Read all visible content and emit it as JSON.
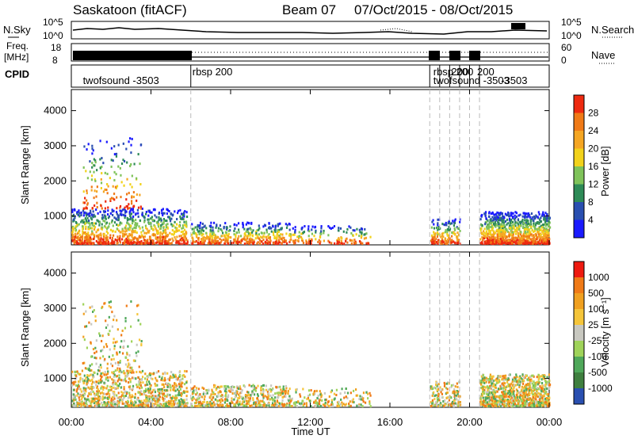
{
  "header": {
    "radar": "Saskatoon (fitACF)",
    "beam": "Beam 07",
    "date_range": "07/Oct/2015 - 08/Oct/2015"
  },
  "noise_panel": {
    "left_label": "N.Sky",
    "right_label": "N.Search",
    "left_ticks": [
      "10^5",
      "10^0"
    ],
    "right_ticks": [
      "10^5",
      "10^0"
    ]
  },
  "freq_panel": {
    "left_label_line1": "Freq.",
    "left_label_line2": "[MHz]",
    "right_label": "Nave",
    "left_ticks": [
      "18",
      "8"
    ],
    "right_ticks": [
      "60",
      "0"
    ]
  },
  "cpid_panel": {
    "label": "CPID",
    "entries": [
      {
        "text": "twofsound -3503",
        "x": 0.5,
        "row": 2
      },
      {
        "text": "rbsp 200",
        "x": 6.0,
        "row": 1
      },
      {
        "text": "rbsp 200",
        "x": 18.1,
        "row": 1
      },
      {
        "text": "twofsound -3503",
        "x": 18.1,
        "row": 2
      },
      {
        "text": "200",
        "x": 19.0,
        "row": 1
      },
      {
        "text": "200",
        "x": 20.3,
        "row": 1
      },
      {
        "text": "-3503",
        "x": 21.5,
        "row": 2
      }
    ],
    "boundaries": [
      6.0,
      18.0,
      18.5,
      19.0,
      19.5,
      20.0,
      20.5
    ]
  },
  "x_axis": {
    "label": "Time UT",
    "ticks": [
      "00:00",
      "04:00",
      "08:00",
      "12:00",
      "16:00",
      "20:00",
      "00:00"
    ]
  },
  "power_panel": {
    "ylabel": "Slant Range [km]",
    "colorbar_label": "Power [dB]",
    "colorbar_ticks": [
      "28",
      "24",
      "20",
      "16",
      "12",
      "8",
      "4"
    ],
    "colors": [
      "#1a1aff",
      "#2a4fb0",
      "#2e8b57",
      "#7fc35a",
      "#f2d21b",
      "#f5a623",
      "#f07a17",
      "#ee2a10"
    ]
  },
  "velocity_panel": {
    "ylabel": "Slant Range [km]",
    "colorbar_label": "Velocity [m s⁻¹]",
    "colorbar_ticks": [
      "1000",
      "500",
      "100",
      "25",
      "-25",
      "-100",
      "-500",
      "-1000"
    ],
    "colors": [
      "#2a4fb0",
      "#3f7f3f",
      "#4fa85a",
      "#9fd35a",
      "#c8c8c0",
      "#f5c53a",
      "#f0a020",
      "#f07a17",
      "#ee1a10"
    ]
  },
  "chart_data": {
    "type": "heatmap",
    "title": "Saskatoon (fitACF) Beam 07 07/Oct/2015 - 08/Oct/2015",
    "xlabel": "Time UT",
    "ylabel": "Slant Range [km]",
    "xlim": [
      0,
      24
    ],
    "ylim": [
      180,
      4600
    ],
    "yticks": [
      1000,
      2000,
      3000,
      4000
    ],
    "scatter_regions": [
      {
        "t0": 0.0,
        "t1": 5.8,
        "r0": 200,
        "r1": 1200,
        "density": "high"
      },
      {
        "t0": 0.5,
        "t1": 3.5,
        "r0": 1200,
        "r1": 3200,
        "density": "low"
      },
      {
        "t0": 6.0,
        "t1": 11.0,
        "r0": 200,
        "r1": 800,
        "density": "medium"
      },
      {
        "t0": 11.0,
        "t1": 15.0,
        "r0": 200,
        "r1": 700,
        "density": "low"
      },
      {
        "t0": 18.0,
        "t1": 19.5,
        "r0": 200,
        "r1": 900,
        "density": "low"
      },
      {
        "t0": 20.5,
        "t1": 24.0,
        "r0": 200,
        "r1": 1100,
        "density": "high"
      }
    ]
  }
}
